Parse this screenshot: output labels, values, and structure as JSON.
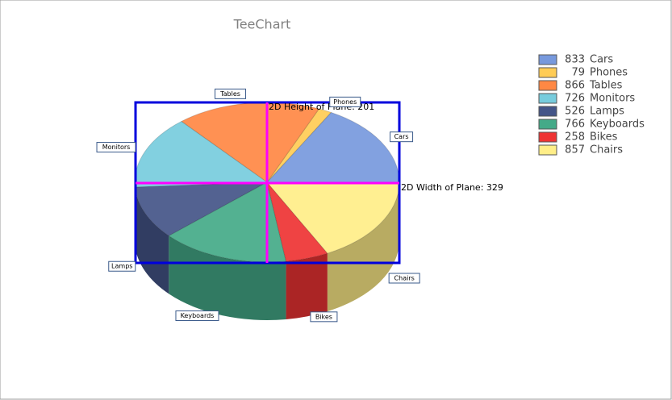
{
  "chart_data": {
    "type": "pie",
    "title": "TeeChart",
    "categories": [
      "Cars",
      "Phones",
      "Tables",
      "Monitors",
      "Lamps",
      "Keyboards",
      "Bikes",
      "Chairs"
    ],
    "values": [
      833,
      79,
      866,
      726,
      526,
      766,
      258,
      857
    ],
    "colors": [
      "#7799dd",
      "#ffcc55",
      "#ff8844",
      "#77ccdd",
      "#445588",
      "#44aa88",
      "#ee3333",
      "#ffee88"
    ],
    "annotations": [
      "2D Height of Plane: 201",
      "2D Width of Plane: 329"
    ],
    "legend": "right"
  }
}
